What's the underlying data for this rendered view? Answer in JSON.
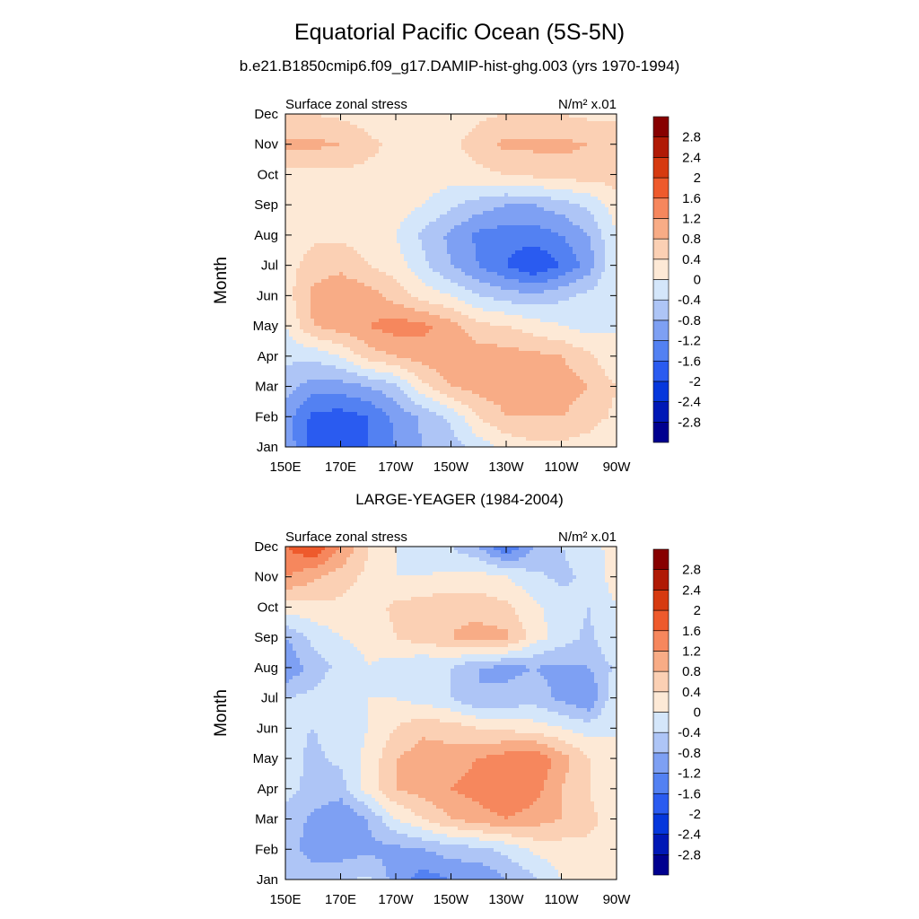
{
  "figure": {
    "title": "Equatorial Pacific Ocean (5S-5N)",
    "subtitle": "b.e21.B1850cmip6.f09_g17.DAMIP-hist-ghg.003 (yrs 1970-1994)"
  },
  "colorbar": {
    "levels": [
      -2.8,
      -2.4,
      -2,
      -1.6,
      -1.2,
      -0.8,
      -0.4,
      0,
      0.4,
      0.8,
      1.2,
      1.6,
      2,
      2.4,
      2.8
    ],
    "labels": [
      "-2.8",
      "-2.4",
      "-2",
      "-1.6",
      "-1.2",
      "-0.8",
      "-0.4",
      "0",
      "0.4",
      "0.8",
      "1.2",
      "1.6",
      "2",
      "2.4",
      "2.8"
    ],
    "colors": [
      "#00008f",
      "#0018b6",
      "#0537dc",
      "#2a5bf0",
      "#5381f2",
      "#7ea0f3",
      "#aec5f6",
      "#d4e6fa",
      "#fde9d6",
      "#fbd0b4",
      "#f8ac86",
      "#f6875d",
      "#ee5a2c",
      "#d63a10",
      "#b01a05",
      "#870000"
    ]
  },
  "chart_data": [
    {
      "type": "heatmap",
      "panel_title": "",
      "left_label": "Surface zonal stress",
      "right_label": "N/m² x.01",
      "xlabel": "",
      "ylabel": "Month",
      "x_tick_labels": [
        "150E",
        "170E",
        "170W",
        "150W",
        "130W",
        "110W",
        "90W"
      ],
      "y_tick_labels": [
        "Jan",
        "Feb",
        "Mar",
        "Apr",
        "May",
        "Jun",
        "Jul",
        "Aug",
        "Sep",
        "Oct",
        "Nov",
        "Dec"
      ],
      "x": [
        150,
        160,
        170,
        180,
        190,
        200,
        210,
        220,
        230,
        240,
        250,
        260,
        270
      ],
      "y": [
        "Jan",
        "Feb",
        "Mar",
        "Apr",
        "May",
        "Jun",
        "Jul",
        "Aug",
        "Sep",
        "Oct",
        "Nov",
        "Dec"
      ],
      "xlim": [
        150,
        270
      ],
      "units": "N/m² x.01",
      "z": [
        [
          -0.9,
          -1.8,
          -1.8,
          -1.6,
          -1.2,
          -0.8,
          -0.6,
          -0.2,
          0.1,
          0.3,
          0.3,
          0.2,
          0.0
        ],
        [
          -1.0,
          -1.7,
          -1.8,
          -1.6,
          -1.1,
          -0.7,
          -0.3,
          0.4,
          0.8,
          0.8,
          0.8,
          0.6,
          0.3
        ],
        [
          -0.6,
          -1.0,
          -1.0,
          -0.8,
          -0.5,
          0.3,
          0.8,
          1.0,
          1.0,
          1.0,
          1.0,
          0.8,
          0.4
        ],
        [
          -0.3,
          -0.3,
          0.0,
          0.6,
          0.8,
          1.0,
          1.1,
          1.0,
          1.0,
          0.9,
          0.8,
          0.5,
          0.0
        ],
        [
          0.0,
          0.8,
          1.0,
          1.2,
          1.4,
          1.3,
          1.0,
          0.5,
          0.4,
          0.2,
          0.0,
          -0.2,
          0.0
        ],
        [
          0.2,
          0.9,
          1.1,
          1.0,
          0.6,
          0.2,
          0.0,
          -0.4,
          -0.6,
          -0.7,
          -0.5,
          -0.3,
          0.0
        ],
        [
          0.2,
          0.6,
          0.7,
          0.4,
          0.2,
          -0.3,
          -0.8,
          -1.2,
          -1.6,
          -2.0,
          -1.6,
          -1.0,
          0.0
        ],
        [
          0.2,
          0.3,
          0.3,
          0.2,
          0.0,
          -0.5,
          -0.9,
          -1.3,
          -1.4,
          -1.4,
          -1.2,
          -0.8,
          0.0
        ],
        [
          0.0,
          0.1,
          0.2,
          0.3,
          0.2,
          0.0,
          -0.3,
          -0.6,
          -0.8,
          -0.8,
          -0.6,
          -0.3,
          0.2
        ],
        [
          0.2,
          0.3,
          0.3,
          0.3,
          0.3,
          0.2,
          0.2,
          0.3,
          0.4,
          0.5,
          0.6,
          0.6,
          0.6
        ],
        [
          0.9,
          0.9,
          0.8,
          0.5,
          0.3,
          0.2,
          0.3,
          0.6,
          0.9,
          0.9,
          0.9,
          0.8,
          0.7
        ],
        [
          0.4,
          0.4,
          0.3,
          0.2,
          0.1,
          0.1,
          0.2,
          0.3,
          0.4,
          0.4,
          0.4,
          0.3,
          0.3
        ]
      ]
    },
    {
      "type": "heatmap",
      "panel_title": "LARGE-YEAGER (1984-2004)",
      "left_label": "Surface zonal stress",
      "right_label": "N/m² x.01",
      "xlabel": "",
      "ylabel": "Month",
      "x_tick_labels": [
        "150E",
        "170E",
        "170W",
        "150W",
        "130W",
        "110W",
        "90W"
      ],
      "y_tick_labels": [
        "Jan",
        "Feb",
        "Mar",
        "Apr",
        "May",
        "Jun",
        "Jul",
        "Aug",
        "Sep",
        "Oct",
        "Nov",
        "Dec"
      ],
      "x": [
        150,
        160,
        170,
        180,
        190,
        200,
        210,
        220,
        230,
        240,
        250,
        260,
        270
      ],
      "y": [
        "Jan",
        "Feb",
        "Mar",
        "Apr",
        "May",
        "Jun",
        "Jul",
        "Aug",
        "Sep",
        "Oct",
        "Nov",
        "Dec"
      ],
      "xlim": [
        150,
        270
      ],
      "units": "N/m² x.01",
      "z": [
        [
          -0.4,
          -0.6,
          -0.5,
          -0.3,
          -1.0,
          -1.4,
          -1.2,
          -1.2,
          -0.8,
          -0.5,
          0.0,
          0.3,
          0.3
        ],
        [
          -0.6,
          -1.0,
          -1.0,
          -0.9,
          -0.9,
          -0.8,
          -0.6,
          -0.5,
          -0.3,
          0.1,
          0.2,
          0.3,
          0.3
        ],
        [
          -0.5,
          -0.9,
          -1.2,
          -0.8,
          0.0,
          0.4,
          0.8,
          1.0,
          1.2,
          1.0,
          0.8,
          0.5,
          0.2
        ],
        [
          -0.3,
          -0.5,
          -0.6,
          0.2,
          0.8,
          1.0,
          1.2,
          1.4,
          1.6,
          1.4,
          0.8,
          0.4,
          0.0
        ],
        [
          -0.2,
          -0.5,
          -0.3,
          0.1,
          0.8,
          1.0,
          1.0,
          1.2,
          1.4,
          1.6,
          1.0,
          0.4,
          0.0
        ],
        [
          -0.3,
          -0.4,
          -0.2,
          0.0,
          0.4,
          0.7,
          0.6,
          0.4,
          0.3,
          0.2,
          0.0,
          -0.2,
          0.0
        ],
        [
          -0.4,
          -0.3,
          -0.1,
          0.0,
          0.0,
          -0.2,
          -0.4,
          -0.8,
          -0.7,
          -0.6,
          -0.9,
          -1.2,
          0.0
        ],
        [
          -1.2,
          -0.6,
          -0.3,
          0.0,
          -0.2,
          -0.4,
          -0.4,
          -0.8,
          -0.9,
          -0.8,
          -0.9,
          -0.8,
          -0.3
        ],
        [
          -0.8,
          -0.3,
          0.0,
          0.1,
          0.4,
          0.6,
          0.8,
          1.0,
          0.9,
          0.2,
          -0.2,
          -0.5,
          0.0
        ],
        [
          0.2,
          0.3,
          0.3,
          0.2,
          0.5,
          0.6,
          0.7,
          0.6,
          0.5,
          0.1,
          -0.2,
          -0.4,
          0.0
        ],
        [
          1.2,
          0.9,
          0.6,
          0.3,
          0.0,
          0.0,
          0.1,
          0.2,
          0.0,
          -0.3,
          -0.5,
          -0.3,
          0.2
        ],
        [
          1.6,
          2.0,
          1.2,
          0.4,
          0.0,
          -0.2,
          -0.4,
          -0.8,
          -1.6,
          -0.8,
          -0.4,
          -0.2,
          0.2
        ]
      ]
    }
  ]
}
